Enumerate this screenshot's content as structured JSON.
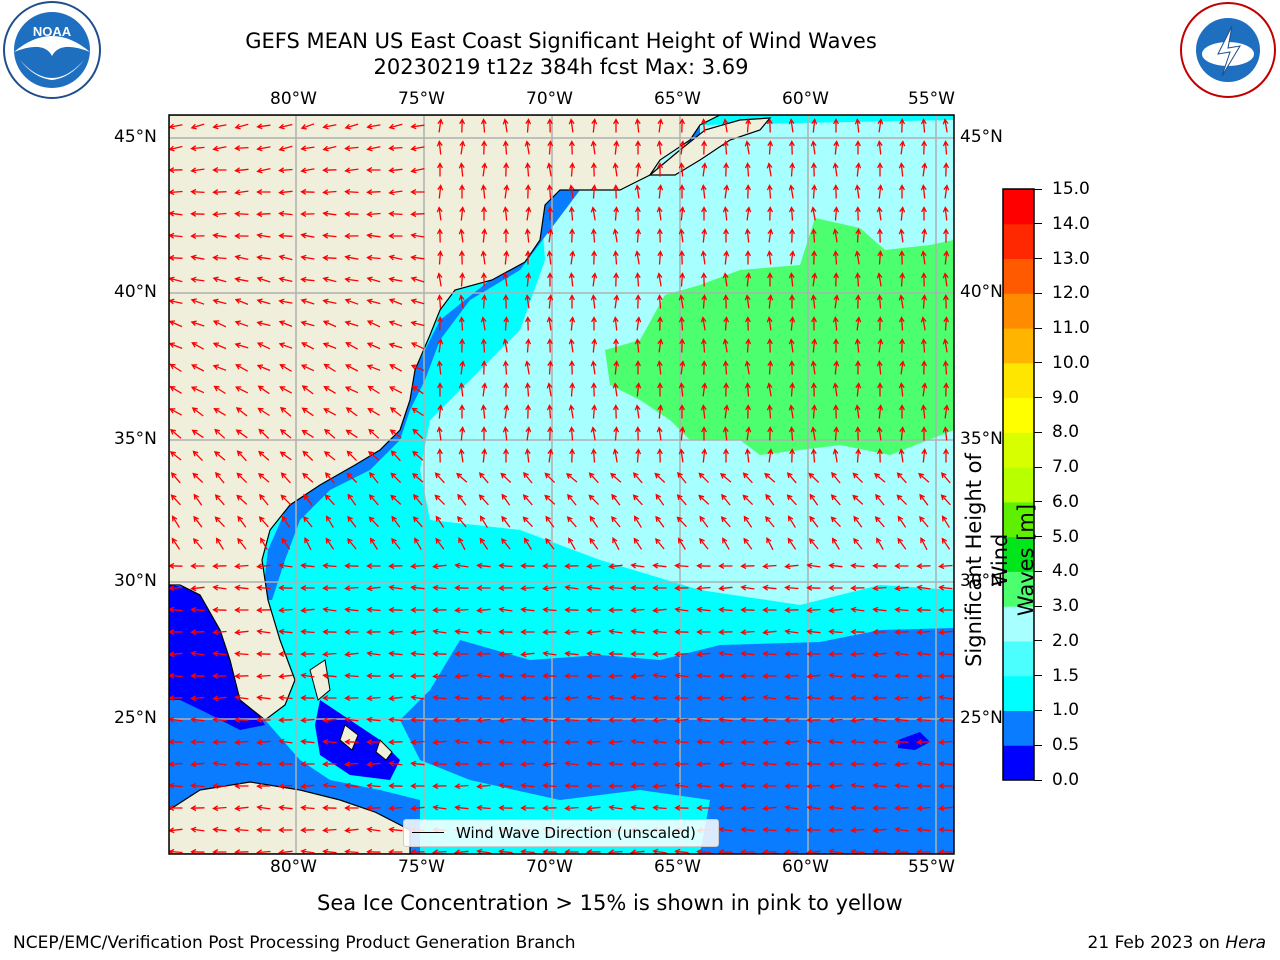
{
  "title": {
    "line1": "GEFS MEAN US East Coast Significant Height of Wind Waves",
    "line2": "20230219 t12z 384h fcst   Max: 3.69"
  },
  "map": {
    "lon_labels": [
      "80°W",
      "75°W",
      "70°W",
      "65°W",
      "60°W",
      "55°W"
    ],
    "lat_labels": [
      "45°N",
      "40°N",
      "35°N",
      "30°N",
      "25°N"
    ],
    "colors": {
      "land": "#efefdc",
      "ocean_default": "#00ffff",
      "gridline": "#b0b0b0",
      "arrow": "#ff0000"
    }
  },
  "legend": {
    "label": "Wind Wave Direction (unscaled)"
  },
  "colorbar": {
    "label_line1": "Significant Height of Wind",
    "label_line2": "Waves [m]",
    "ticks": [
      "0.0",
      "0.5",
      "1.0",
      "1.5",
      "2.0",
      "3.0",
      "4.0",
      "5.0",
      "6.0",
      "7.0",
      "8.0",
      "9.0",
      "10.0",
      "11.0",
      "12.0",
      "13.0",
      "14.0",
      "15.0"
    ],
    "colors": [
      "#0000ff",
      "#0a7cff",
      "#00ffff",
      "#4cffff",
      "#a8ffff",
      "#4cff6e",
      "#00e61a",
      "#5ef000",
      "#b8ff00",
      "#d8ff00",
      "#ffff00",
      "#ffe600",
      "#ffb400",
      "#ff8c00",
      "#ff5a00",
      "#ff2800",
      "#ff0000"
    ]
  },
  "caption": "Sea Ice Concentration > 15% is shown in pink to yellow",
  "footer": {
    "left": "NCEP/EMC/Verification Post Processing Product Generation Branch",
    "right_date": "21 Feb 2023 on ",
    "right_host": "Hera"
  },
  "logos": {
    "noaa": "NOAA",
    "nws": "NATIONAL WEATHER SERVICE"
  }
}
